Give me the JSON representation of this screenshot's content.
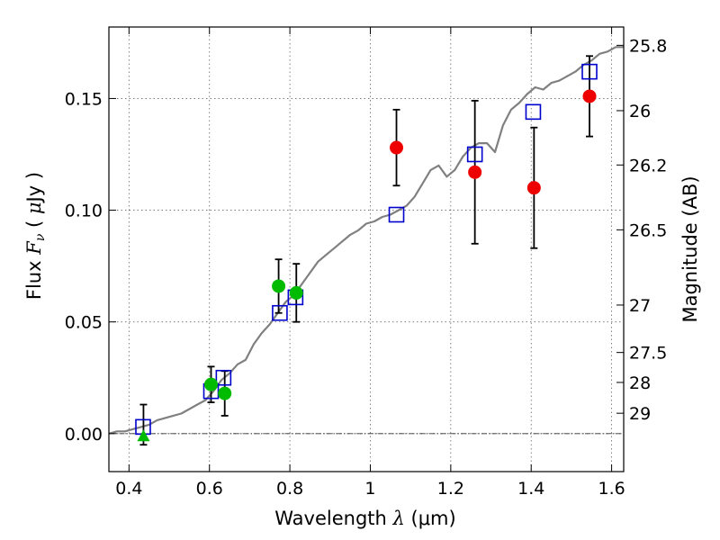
{
  "chart_data": {
    "type": "scatter",
    "xlabel": "Wavelength  λ (μm)",
    "xlabel_parts": {
      "main": "Wavelength  ",
      "symbol": "λ",
      "unit": " (μm)"
    },
    "ylabel": "Flux  Fν  ( μJy )",
    "ylabel_parts": {
      "main": "Flux  ",
      "symbol": "F",
      "sub": "ν",
      "open": "  ( ",
      "mu": "μ",
      "unit": "Jy )"
    },
    "y2label": "Magnitude (AB)",
    "xlim": [
      0.35,
      1.63
    ],
    "ylim": [
      -0.017,
      0.182
    ],
    "xticks": [
      {
        "value": 0.4,
        "label": "0.4"
      },
      {
        "value": 0.6,
        "label": "0.6"
      },
      {
        "value": 0.8,
        "label": "0.8"
      },
      {
        "value": 1.0,
        "label": "1"
      },
      {
        "value": 1.2,
        "label": "1.2"
      },
      {
        "value": 1.4,
        "label": "1.4"
      },
      {
        "value": 1.6,
        "label": "1.6"
      }
    ],
    "yticks": [
      {
        "value": 0.0,
        "label": "0.00"
      },
      {
        "value": 0.05,
        "label": "0.05"
      },
      {
        "value": 0.1,
        "label": "0.10"
      },
      {
        "value": 0.15,
        "label": "0.15"
      }
    ],
    "y2ticks": [
      {
        "mag": 25.8,
        "label": "25.8"
      },
      {
        "mag": 26.0,
        "label": "26"
      },
      {
        "mag": 26.2,
        "label": "26.2"
      },
      {
        "mag": 26.5,
        "label": "26.5"
      },
      {
        "mag": 27.0,
        "label": "27"
      },
      {
        "mag": 27.5,
        "label": "27.5"
      },
      {
        "mag": 28.0,
        "label": "28"
      },
      {
        "mag": 29.0,
        "label": "29"
      }
    ],
    "grid": true,
    "zero_line": 0.0,
    "colors": {
      "model": "#808080",
      "model_points": "#0000cc",
      "optical": "#00bb00",
      "infrared": "#ee0000",
      "errorbar": "#000000",
      "grid": "#666666"
    },
    "series": [
      {
        "name": "model spectrum",
        "kind": "line",
        "x": [
          0.35,
          0.37,
          0.39,
          0.41,
          0.43,
          0.45,
          0.47,
          0.49,
          0.51,
          0.53,
          0.55,
          0.57,
          0.59,
          0.61,
          0.63,
          0.65,
          0.67,
          0.69,
          0.71,
          0.73,
          0.75,
          0.77,
          0.79,
          0.81,
          0.83,
          0.85,
          0.87,
          0.89,
          0.91,
          0.93,
          0.95,
          0.97,
          0.99,
          1.01,
          1.03,
          1.05,
          1.07,
          1.09,
          1.11,
          1.13,
          1.15,
          1.17,
          1.19,
          1.21,
          1.23,
          1.25,
          1.27,
          1.29,
          1.31,
          1.33,
          1.35,
          1.37,
          1.39,
          1.41,
          1.43,
          1.45,
          1.47,
          1.49,
          1.51,
          1.53,
          1.55,
          1.57,
          1.59,
          1.61,
          1.63
        ],
        "y": [
          0.0,
          0.001,
          0.001,
          0.002,
          0.003,
          0.004,
          0.006,
          0.007,
          0.008,
          0.009,
          0.011,
          0.013,
          0.015,
          0.019,
          0.024,
          0.027,
          0.031,
          0.033,
          0.04,
          0.045,
          0.049,
          0.054,
          0.059,
          0.062,
          0.067,
          0.072,
          0.077,
          0.08,
          0.083,
          0.086,
          0.089,
          0.091,
          0.094,
          0.095,
          0.097,
          0.098,
          0.1,
          0.102,
          0.106,
          0.112,
          0.118,
          0.12,
          0.115,
          0.118,
          0.124,
          0.128,
          0.13,
          0.13,
          0.126,
          0.138,
          0.145,
          0.148,
          0.152,
          0.155,
          0.154,
          0.157,
          0.158,
          0.16,
          0.162,
          0.165,
          0.167,
          0.17,
          0.171,
          0.173,
          0.173
        ]
      },
      {
        "name": "model photometry",
        "kind": "open-square",
        "points": [
          {
            "x": 0.435,
            "y": 0.003
          },
          {
            "x": 0.604,
            "y": 0.019
          },
          {
            "x": 0.635,
            "y": 0.025
          },
          {
            "x": 0.775,
            "y": 0.054
          },
          {
            "x": 0.814,
            "y": 0.061
          },
          {
            "x": 1.065,
            "y": 0.098
          },
          {
            "x": 1.26,
            "y": 0.125
          },
          {
            "x": 1.405,
            "y": 0.144
          },
          {
            "x": 1.545,
            "y": 0.162
          }
        ]
      },
      {
        "name": "optical photometry",
        "kind": "filled-circle",
        "points": [
          {
            "x": 0.604,
            "y": 0.022,
            "err": 0.008
          },
          {
            "x": 0.638,
            "y": 0.018,
            "err": 0.01
          },
          {
            "x": 0.772,
            "y": 0.066,
            "err": 0.012
          },
          {
            "x": 0.816,
            "y": 0.063,
            "err": 0.013
          }
        ]
      },
      {
        "name": "optical upper limit",
        "kind": "triangle",
        "points": [
          {
            "x": 0.436,
            "y": -0.001,
            "err_lo": 0.004,
            "err_hi": 0.014
          }
        ]
      },
      {
        "name": "near-IR photometry",
        "kind": "filled-circle",
        "points": [
          {
            "x": 1.065,
            "y": 0.128,
            "err": 0.017
          },
          {
            "x": 1.26,
            "y": 0.117,
            "err": 0.032
          },
          {
            "x": 1.407,
            "y": 0.11,
            "err": 0.027
          },
          {
            "x": 1.545,
            "y": 0.151,
            "err": 0.018
          }
        ]
      }
    ]
  }
}
